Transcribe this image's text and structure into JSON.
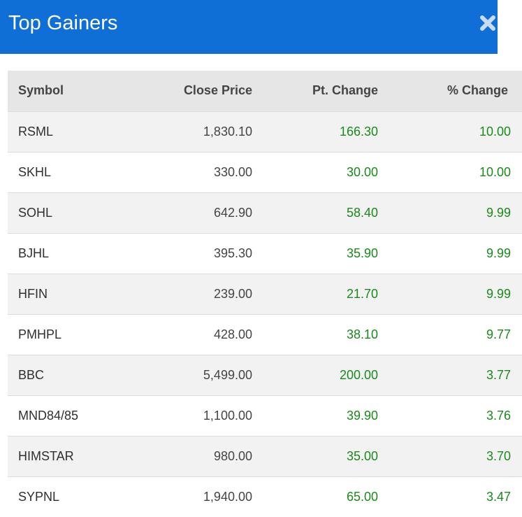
{
  "header": {
    "title": "Top Gainers",
    "close_icon": "close-icon"
  },
  "colors": {
    "header_bg": "#0f6fd6",
    "gain": "#1a8a1a",
    "row_alt": "#f2f2f2",
    "header_row": "#e6e6e6"
  },
  "table": {
    "columns": [
      "Symbol",
      "Close Price",
      "Pt. Change",
      "% Change"
    ],
    "rows": [
      {
        "symbol": "RSML",
        "close": "1,830.10",
        "pt": "166.30",
        "pct": "10.00"
      },
      {
        "symbol": "SKHL",
        "close": "330.00",
        "pt": "30.00",
        "pct": "10.00"
      },
      {
        "symbol": "SOHL",
        "close": "642.90",
        "pt": "58.40",
        "pct": "9.99"
      },
      {
        "symbol": "BJHL",
        "close": "395.30",
        "pt": "35.90",
        "pct": "9.99"
      },
      {
        "symbol": "HFIN",
        "close": "239.00",
        "pt": "21.70",
        "pct": "9.99"
      },
      {
        "symbol": "PMHPL",
        "close": "428.00",
        "pt": "38.10",
        "pct": "9.77"
      },
      {
        "symbol": "BBC",
        "close": "5,499.00",
        "pt": "200.00",
        "pct": "3.77"
      },
      {
        "symbol": "MND84/85",
        "close": "1,100.00",
        "pt": "39.90",
        "pct": "3.76"
      },
      {
        "symbol": "HIMSTAR",
        "close": "980.00",
        "pt": "35.00",
        "pct": "3.70"
      },
      {
        "symbol": "SYPNL",
        "close": "1,940.00",
        "pt": "65.00",
        "pct": "3.47"
      }
    ]
  }
}
